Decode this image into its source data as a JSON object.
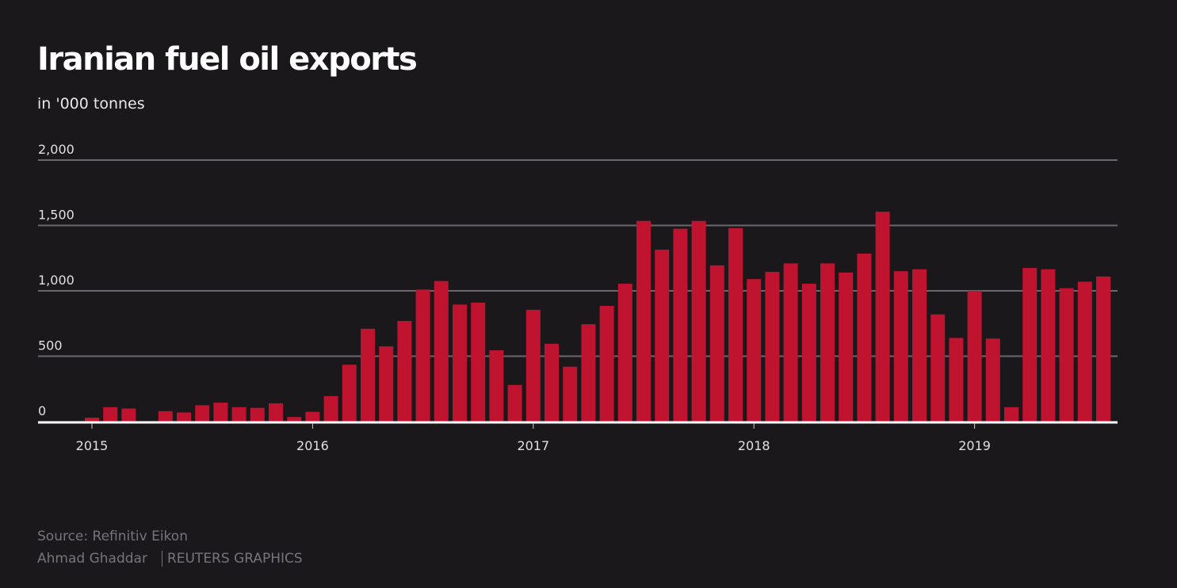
{
  "chart_data": {
    "type": "bar",
    "title": "Iranian fuel oil exports",
    "subtitle": "in '000 tonnes",
    "xlabel": "",
    "ylabel": "",
    "ylim": [
      0,
      2000
    ],
    "yticks": [
      0,
      500,
      1000,
      1500,
      2000
    ],
    "ytick_labels": [
      "0",
      "500",
      "1,000",
      "1,500",
      "2,000"
    ],
    "xtick_labels": [
      "2015",
      "2016",
      "2017",
      "2018",
      "2019"
    ],
    "grid": true,
    "start": "2015-01",
    "categories": [
      "2015-01",
      "2015-02",
      "2015-03",
      "2015-04",
      "2015-05",
      "2015-06",
      "2015-07",
      "2015-08",
      "2015-09",
      "2015-10",
      "2015-11",
      "2015-12",
      "2016-01",
      "2016-02",
      "2016-03",
      "2016-04",
      "2016-05",
      "2016-06",
      "2016-07",
      "2016-08",
      "2016-09",
      "2016-10",
      "2016-11",
      "2016-12",
      "2017-01",
      "2017-02",
      "2017-03",
      "2017-04",
      "2017-05",
      "2017-06",
      "2017-07",
      "2017-08",
      "2017-09",
      "2017-10",
      "2017-11",
      "2017-12",
      "2018-01",
      "2018-02",
      "2018-03",
      "2018-04",
      "2018-05",
      "2018-06",
      "2018-07",
      "2018-08",
      "2018-09",
      "2018-10",
      "2018-11",
      "2018-12",
      "2019-01",
      "2019-02",
      "2019-03",
      "2019-04",
      "2019-05",
      "2019-06",
      "2019-07",
      "2019-08"
    ],
    "values": [
      30,
      110,
      100,
      0,
      80,
      70,
      125,
      145,
      110,
      105,
      140,
      35,
      75,
      195,
      435,
      710,
      575,
      770,
      1010,
      1075,
      895,
      910,
      545,
      280,
      855,
      595,
      420,
      745,
      885,
      1055,
      1535,
      1315,
      1475,
      1535,
      1195,
      1480,
      1090,
      1145,
      1210,
      1055,
      1210,
      1140,
      1285,
      1605,
      1150,
      1165,
      820,
      640,
      1000,
      635,
      110,
      1175,
      1165,
      1020,
      1070,
      1110
    ],
    "bar_color": "#c0132f"
  },
  "footer": {
    "source": "Source: Refinitiv Eikon",
    "author": "Ahmad Ghaddar",
    "credit": "REUTERS GRAPHICS"
  }
}
